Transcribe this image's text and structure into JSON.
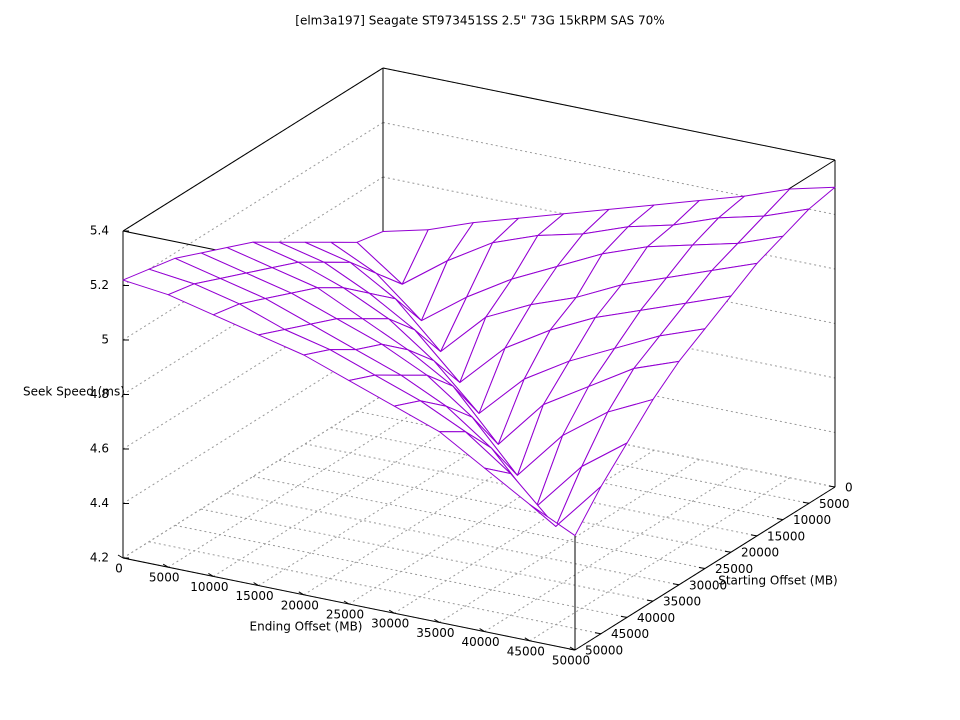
{
  "chart_data": {
    "type": "surface",
    "title": "[elm3a197] Seagate ST973451SS 2.5\" 73G 15kRPM SAS 70%",
    "x_label": "Ending Offset (MB)",
    "y_label": "Starting Offset (MB)",
    "z_label": "Seek Speed (ms)",
    "x": [
      0,
      5000,
      10000,
      15000,
      20000,
      25000,
      30000,
      35000,
      40000,
      45000,
      50000
    ],
    "y": [
      0,
      5000,
      10000,
      15000,
      20000,
      25000,
      30000,
      35000,
      40000,
      45000,
      50000
    ],
    "color": "#9400d3",
    "values": [
      [
        4.8,
        4.84,
        4.9,
        4.95,
        5.0,
        5.05,
        5.1,
        5.15,
        5.2,
        5.26,
        5.3
      ],
      [
        4.82,
        4.7,
        4.82,
        4.92,
        4.98,
        5.02,
        5.08,
        5.12,
        5.18,
        5.22,
        5.28
      ],
      [
        4.88,
        4.8,
        4.66,
        4.78,
        4.88,
        4.96,
        5.04,
        5.1,
        5.14,
        5.18,
        5.24
      ],
      [
        4.94,
        4.9,
        4.8,
        4.64,
        4.8,
        4.88,
        4.94,
        5.02,
        5.08,
        5.14,
        5.2
      ],
      [
        5.0,
        4.96,
        4.88,
        4.78,
        4.62,
        4.78,
        4.88,
        4.96,
        5.02,
        5.08,
        5.14
      ],
      [
        5.06,
        5.02,
        4.96,
        4.88,
        4.76,
        4.6,
        4.76,
        4.86,
        4.94,
        5.02,
        5.08
      ],
      [
        5.1,
        5.06,
        5.02,
        4.94,
        4.86,
        4.76,
        4.58,
        4.76,
        4.86,
        4.96,
        5.02
      ],
      [
        5.14,
        5.1,
        5.06,
        5.0,
        4.94,
        4.86,
        4.74,
        4.56,
        4.74,
        4.86,
        4.94
      ],
      [
        5.18,
        5.14,
        5.1,
        5.04,
        4.98,
        4.92,
        4.84,
        4.72,
        4.54,
        4.72,
        4.84
      ],
      [
        5.2,
        5.18,
        5.14,
        5.08,
        5.04,
        4.98,
        4.92,
        4.84,
        4.72,
        4.56,
        4.74
      ],
      [
        5.22,
        5.2,
        5.16,
        5.12,
        5.08,
        5.02,
        4.96,
        4.9,
        4.8,
        4.7,
        4.62
      ]
    ],
    "xlim": [
      0,
      50000
    ],
    "ylim": [
      0,
      50000
    ],
    "zlim": [
      4.2,
      5.4
    ],
    "xticks": [
      0,
      5000,
      10000,
      15000,
      20000,
      25000,
      30000,
      35000,
      40000,
      45000,
      50000
    ],
    "yticks": [
      0,
      5000,
      10000,
      15000,
      20000,
      25000,
      30000,
      35000,
      40000,
      45000,
      50000
    ],
    "zticks": [
      4.2,
      4.4,
      4.6,
      4.8,
      5,
      5.2,
      5.4
    ],
    "grid": true
  }
}
